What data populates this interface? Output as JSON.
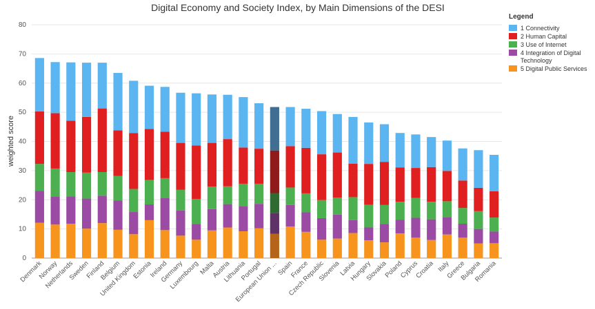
{
  "chart_data": {
    "type": "bar",
    "stacked": true,
    "title": "Digital Economy and Society Index, by Main Dimensions of the DESI",
    "xlabel": "",
    "ylabel": "weighted score",
    "ylim": [
      0,
      80
    ],
    "yticks": [
      0,
      10,
      20,
      30,
      40,
      50,
      60,
      70,
      80
    ],
    "grid": true,
    "legend_title": "Legend",
    "legend_position": "top-right",
    "categories": [
      "Denmark",
      "Norway",
      "Netherlands",
      "Sweden",
      "Finland",
      "Belgium",
      "United Kingdom",
      "Estonia",
      "Ireland",
      "Germany",
      "Luxembourg",
      "Malta",
      "Austria",
      "Lithuania",
      "Portugal",
      "European Union ...",
      "Spain",
      "France",
      "Czech Republic",
      "Slovenia",
      "Latvia",
      "Hungary",
      "Slovakia",
      "Poland",
      "Cyprus",
      "Croatia",
      "Italy",
      "Greece",
      "Bulgaria",
      "Romania"
    ],
    "highlight_category": "European Union ...",
    "series": [
      {
        "name": "5 Digital Public Services",
        "color": "#F7941D",
        "highlight_color": "#B5651A",
        "values": [
          12.1,
          11.5,
          11.8,
          10.1,
          12.0,
          9.7,
          8.2,
          13.0,
          9.6,
          7.7,
          6.3,
          9.5,
          10.5,
          9.2,
          10.2,
          8.3,
          10.8,
          9.0,
          6.3,
          6.7,
          8.6,
          6.1,
          5.4,
          8.5,
          7.0,
          6.2,
          8.1,
          7.0,
          5.0,
          5.1
        ]
      },
      {
        "name": "4 Integration of Digital Technology",
        "color": "#9B4BA3",
        "highlight_color": "#5E3266",
        "values": [
          11.0,
          9.5,
          9.4,
          10.3,
          9.4,
          10.0,
          7.6,
          5.4,
          11.1,
          8.6,
          5.4,
          7.3,
          8.0,
          8.5,
          8.4,
          7.2,
          7.4,
          6.7,
          7.4,
          8.2,
          4.4,
          4.4,
          6.3,
          4.6,
          6.8,
          7.1,
          6.0,
          4.8,
          5.0,
          4.0
        ]
      },
      {
        "name": "3 Use of Internet",
        "color": "#4CAF50",
        "highlight_color": "#2E6A31",
        "values": [
          9.2,
          9.7,
          8.3,
          8.9,
          8.1,
          8.5,
          7.9,
          8.4,
          6.7,
          7.1,
          8.6,
          7.7,
          6.1,
          7.8,
          6.9,
          6.8,
          6.0,
          6.5,
          6.2,
          5.8,
          7.9,
          7.8,
          6.5,
          6.2,
          6.8,
          6.0,
          5.4,
          5.4,
          6.1,
          4.8
        ]
      },
      {
        "name": "2 Human Capital",
        "color": "#E02020",
        "highlight_color": "#8E1A1A",
        "values": [
          18.0,
          19.0,
          17.6,
          19.1,
          21.8,
          15.6,
          19.2,
          17.5,
          15.9,
          16.1,
          18.3,
          15.0,
          16.2,
          12.4,
          12.0,
          14.6,
          14.2,
          15.6,
          15.7,
          15.5,
          11.5,
          14.0,
          14.8,
          11.8,
          10.3,
          11.9,
          10.4,
          9.4,
          8.0,
          9.0
        ]
      },
      {
        "name": "1 Connectivity",
        "color": "#5BB5F0",
        "highlight_color": "#3F6E92",
        "values": [
          18.3,
          17.5,
          20.0,
          18.6,
          15.7,
          19.7,
          17.9,
          14.8,
          15.4,
          17.2,
          17.9,
          16.6,
          15.2,
          17.3,
          15.6,
          14.9,
          13.4,
          13.4,
          14.8,
          13.2,
          16.0,
          14.2,
          12.9,
          11.8,
          11.5,
          10.3,
          10.4,
          11.0,
          12.9,
          12.5
        ]
      }
    ]
  }
}
